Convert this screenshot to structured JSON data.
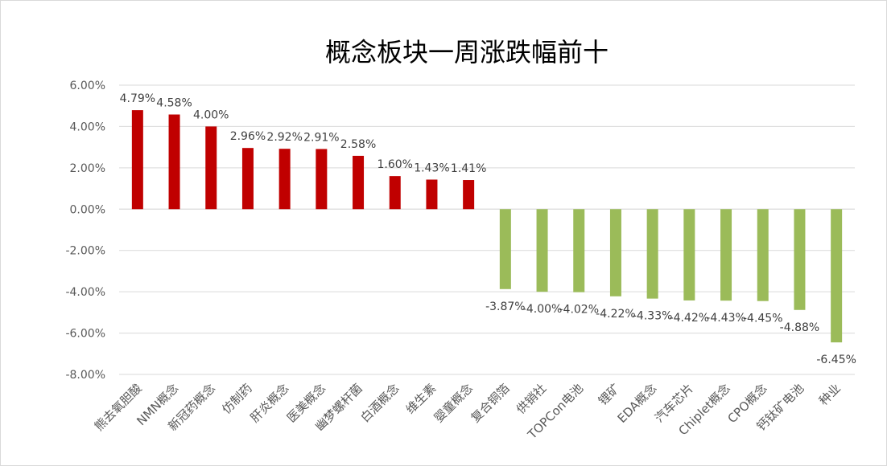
{
  "chart_data": {
    "type": "bar",
    "title": "概念板块一周涨跌幅前十",
    "xlabel": "",
    "ylabel": "",
    "ylim": [
      -8,
      6
    ],
    "ytick_step": 2,
    "ytick_labels": [
      "6.00%",
      "4.00%",
      "2.00%",
      "0.00%",
      "-2.00%",
      "-4.00%",
      "-6.00%",
      "-8.00%"
    ],
    "grid": true,
    "categories": [
      "熊去氧胆酸",
      "NMN概念",
      "新冠药概念",
      "仿制药",
      "肝炎概念",
      "医美概念",
      "幽梦螺杆菌",
      "白酒概念",
      "维生素",
      "婴童概念",
      "复合铜箔",
      "供销社",
      "TOPCon电池",
      "锂矿",
      "EDA概念",
      "汽车芯片",
      "Chiplet概念",
      "CPO概念",
      "钙钛矿电池",
      "种业"
    ],
    "values": [
      4.79,
      4.58,
      4.0,
      2.96,
      2.92,
      2.91,
      2.58,
      1.6,
      1.43,
      1.41,
      -3.87,
      -4.0,
      -4.02,
      -4.22,
      -4.33,
      -4.42,
      -4.43,
      -4.45,
      -4.88,
      -6.45
    ],
    "data_labels": [
      "4.79%",
      "4.58%",
      "4.00%",
      "2.96%",
      "2.92%",
      "2.91%",
      "2.58%",
      "1.60%",
      "1.43%",
      "1.41%",
      "-3.87%",
      "-4.00%",
      "-4.02%",
      "-4.22%",
      "-4.33%",
      "-4.42%",
      "-4.43%",
      "-4.45%",
      "-4.88%",
      "-6.45%"
    ],
    "colors": {
      "positive": "#c00000",
      "negative": "#9bbb59",
      "grid": "#d9d9d9"
    }
  }
}
